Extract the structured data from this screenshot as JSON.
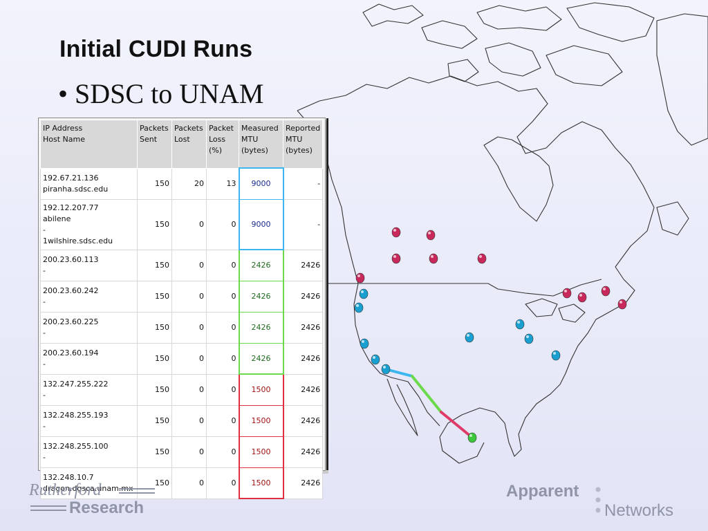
{
  "slide": {
    "title": "Initial CUDI Runs",
    "bullet": "SDSC to UNAM"
  },
  "table": {
    "headers": {
      "ip": [
        "IP Address",
        "Host Name"
      ],
      "sent": [
        "Packets",
        "Sent"
      ],
      "lost": [
        "Packets",
        "Lost"
      ],
      "loss": [
        "Packet",
        "Loss",
        "(%)"
      ],
      "measured": [
        "Measured",
        "MTU",
        "(bytes)"
      ],
      "reported": [
        "Reported",
        "MTU",
        "(bytes)"
      ]
    },
    "rows": [
      {
        "ip": [
          "192.67.21.136",
          "piranha.sdsc.edu"
        ],
        "sent": "150",
        "lost": "20",
        "loss": "13",
        "measured": "9000",
        "reported": "-",
        "group": "blue"
      },
      {
        "ip": [
          "192.12.207.77",
          "abilene",
          "-",
          "1wilshire.sdsc.edu"
        ],
        "sent": "150",
        "lost": "0",
        "loss": "0",
        "measured": "9000",
        "reported": "-",
        "group": "blue"
      },
      {
        "ip": [
          "200.23.60.113",
          "-"
        ],
        "sent": "150",
        "lost": "0",
        "loss": "0",
        "measured": "2426",
        "reported": "2426",
        "group": "green"
      },
      {
        "ip": [
          "200.23.60.242",
          "-"
        ],
        "sent": "150",
        "lost": "0",
        "loss": "0",
        "measured": "2426",
        "reported": "2426",
        "group": "green"
      },
      {
        "ip": [
          "200.23.60.225",
          "-"
        ],
        "sent": "150",
        "lost": "0",
        "loss": "0",
        "measured": "2426",
        "reported": "2426",
        "group": "green"
      },
      {
        "ip": [
          "200.23.60.194",
          "-"
        ],
        "sent": "150",
        "lost": "0",
        "loss": "0",
        "measured": "2426",
        "reported": "2426",
        "group": "green"
      },
      {
        "ip": [
          "132.247.255.222",
          "-"
        ],
        "sent": "150",
        "lost": "0",
        "loss": "0",
        "measured": "1500",
        "reported": "2426",
        "group": "red"
      },
      {
        "ip": [
          "132.248.255.193",
          "-"
        ],
        "sent": "150",
        "lost": "0",
        "loss": "0",
        "measured": "1500",
        "reported": "2426",
        "group": "red"
      },
      {
        "ip": [
          "132.248.255.100",
          "-"
        ],
        "sent": "150",
        "lost": "0",
        "loss": "0",
        "measured": "1500",
        "reported": "2426",
        "group": "red"
      },
      {
        "ip": [
          "132.248.10.7",
          "dragon.dgsca.unam.mx"
        ],
        "sent": "150",
        "lost": "0",
        "loss": "0",
        "measured": "1500",
        "reported": "2426",
        "group": "red"
      }
    ]
  },
  "colors": {
    "blue": "#3bb6ee",
    "green": "#6ad94a",
    "red": "#e03040",
    "measured_blue_text": "#1a2a8a",
    "measured_green_text": "#1f6a1f",
    "measured_red_text": "#a01010",
    "marker_red": "#c8285a",
    "marker_blue": "#1aa0d0",
    "marker_green": "#3cc83c",
    "logo_gray": "#8f94a6"
  },
  "logos": {
    "rutherford_top": "Rutherford",
    "rutherford_bottom": "Research",
    "apparent_top": "Apparent",
    "apparent_bottom": "Networks"
  }
}
